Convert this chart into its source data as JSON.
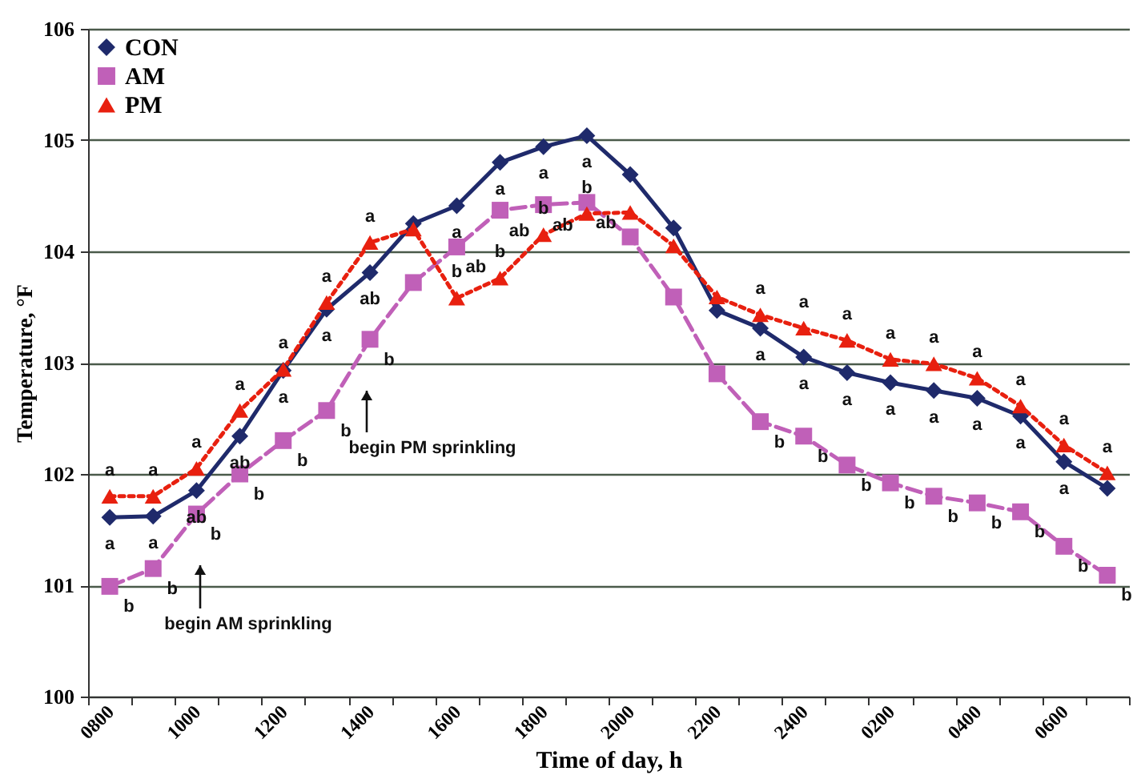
{
  "chart_data": {
    "type": "line",
    "xlabel": "Time of day, h",
    "ylabel": "Temperature, °F",
    "categories": [
      "0800",
      null,
      "1000",
      null,
      "1200",
      null,
      "1400",
      null,
      "1600",
      null,
      "1800",
      null,
      "2000",
      null,
      "2200",
      null,
      "2400",
      null,
      "0200",
      null,
      "0400",
      null,
      "0600",
      null
    ],
    "series": [
      {
        "name": "CON",
        "color": "#1f2a6b",
        "marker": "diamond",
        "line_style": "solid",
        "values": [
          101.61,
          101.62,
          101.85,
          102.34,
          102.93,
          103.48,
          103.81,
          104.25,
          104.41,
          104.8,
          104.94,
          105.04,
          104.69,
          104.21,
          103.47,
          103.31,
          103.05,
          102.91,
          102.82,
          102.75,
          102.68,
          102.52,
          102.11,
          101.87
        ],
        "value_labels": [
          "a",
          "a",
          "ab",
          "ab",
          "a",
          "a",
          "ab",
          null,
          "a",
          "a",
          "a",
          "a",
          null,
          null,
          null,
          "a",
          "a",
          "a",
          "a",
          "a",
          "a",
          "a",
          "a",
          null
        ]
      },
      {
        "name": "AM",
        "color": "#c060b8",
        "marker": "square",
        "line_style": "dashed",
        "values": [
          100.99,
          101.15,
          101.64,
          102.0,
          102.3,
          102.57,
          103.21,
          103.72,
          104.04,
          104.37,
          104.42,
          104.44,
          104.13,
          103.59,
          102.9,
          102.47,
          102.34,
          102.08,
          101.92,
          101.8,
          101.74,
          101.66,
          101.35,
          101.09
        ],
        "value_labels": [
          "b",
          "b",
          "b",
          "b",
          "b",
          "b",
          "b",
          null,
          "ab",
          "ab",
          "ab",
          "ab",
          null,
          null,
          null,
          "b",
          "b",
          "b",
          "b",
          "b",
          "b",
          "b",
          "b",
          "b"
        ]
      },
      {
        "name": "PM",
        "color": "#e8200f",
        "marker": "triangle",
        "line_style": "dotted",
        "values": [
          101.8,
          101.8,
          102.05,
          102.57,
          102.94,
          103.54,
          104.08,
          104.2,
          103.58,
          103.76,
          104.15,
          104.34,
          104.35,
          104.05,
          103.59,
          103.43,
          103.31,
          103.2,
          103.03,
          102.99,
          102.86,
          102.61,
          102.26,
          102.01
        ],
        "value_labels": [
          "a",
          "a",
          "a",
          "a",
          "a",
          "a",
          "a",
          null,
          "b",
          "b",
          "b",
          "b",
          null,
          null,
          null,
          "a",
          "a",
          "a",
          "a",
          "a",
          "a",
          "a",
          "a",
          "a"
        ]
      }
    ],
    "ylim": [
      100,
      106
    ],
    "yticks": [
      100,
      101,
      102,
      103,
      104,
      105,
      106
    ],
    "grid": "y",
    "legend": "top left",
    "annotations": [
      "begin AM sprinkling",
      "begin PM sprinkling"
    ]
  }
}
